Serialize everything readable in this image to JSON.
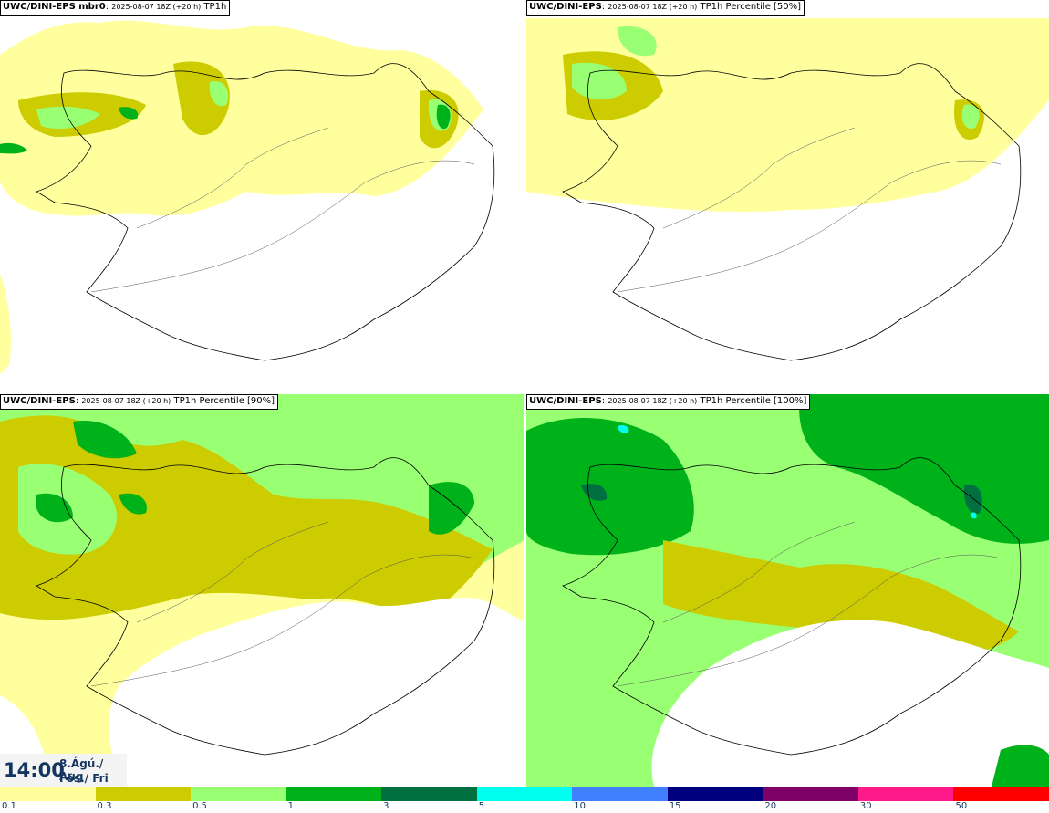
{
  "panels": [
    {
      "id": "p0",
      "model": "UWC/DINI-EPS mbr0",
      "run": "2025-08-07 18Z (+20 h)",
      "field": "TP1h"
    },
    {
      "id": "p1",
      "model": "UWC/DINI-EPS",
      "run": "2025-08-07 18Z (+20 h)",
      "field": "TP1h Percentile [50%]"
    },
    {
      "id": "p2",
      "model": "UWC/DINI-EPS",
      "run": "2025-08-07 18Z (+20 h)",
      "field": "TP1h Percentile [90%]"
    },
    {
      "id": "p3",
      "model": "UWC/DINI-EPS",
      "run": "2025-08-07 18Z (+20 h)",
      "field": "TP1h Percentile [100%]"
    }
  ],
  "valid_time": {
    "time": "14:00",
    "date_line1": "8.Ágú./ Aug",
    "date_line2": "Fös./ Fri"
  },
  "legend": {
    "ticks": [
      "0.1",
      "0.3",
      "0.5",
      "1",
      "3",
      "5",
      "10",
      "15",
      "20",
      "30",
      "50"
    ],
    "colors": [
      "#ffff9e",
      "#cccc00",
      "#99ff73",
      "#00b21a",
      "#007040",
      "#00ffee",
      "#4080ff",
      "#00007f",
      "#7f0066",
      "#ff1a8c",
      "#ff0000"
    ]
  },
  "colors": {
    "light_yellow": "#ffff9e",
    "olive": "#cccc00",
    "light_green": "#99ff73",
    "green": "#00b21a",
    "dark_green": "#007040",
    "cyan": "#00ffee"
  }
}
